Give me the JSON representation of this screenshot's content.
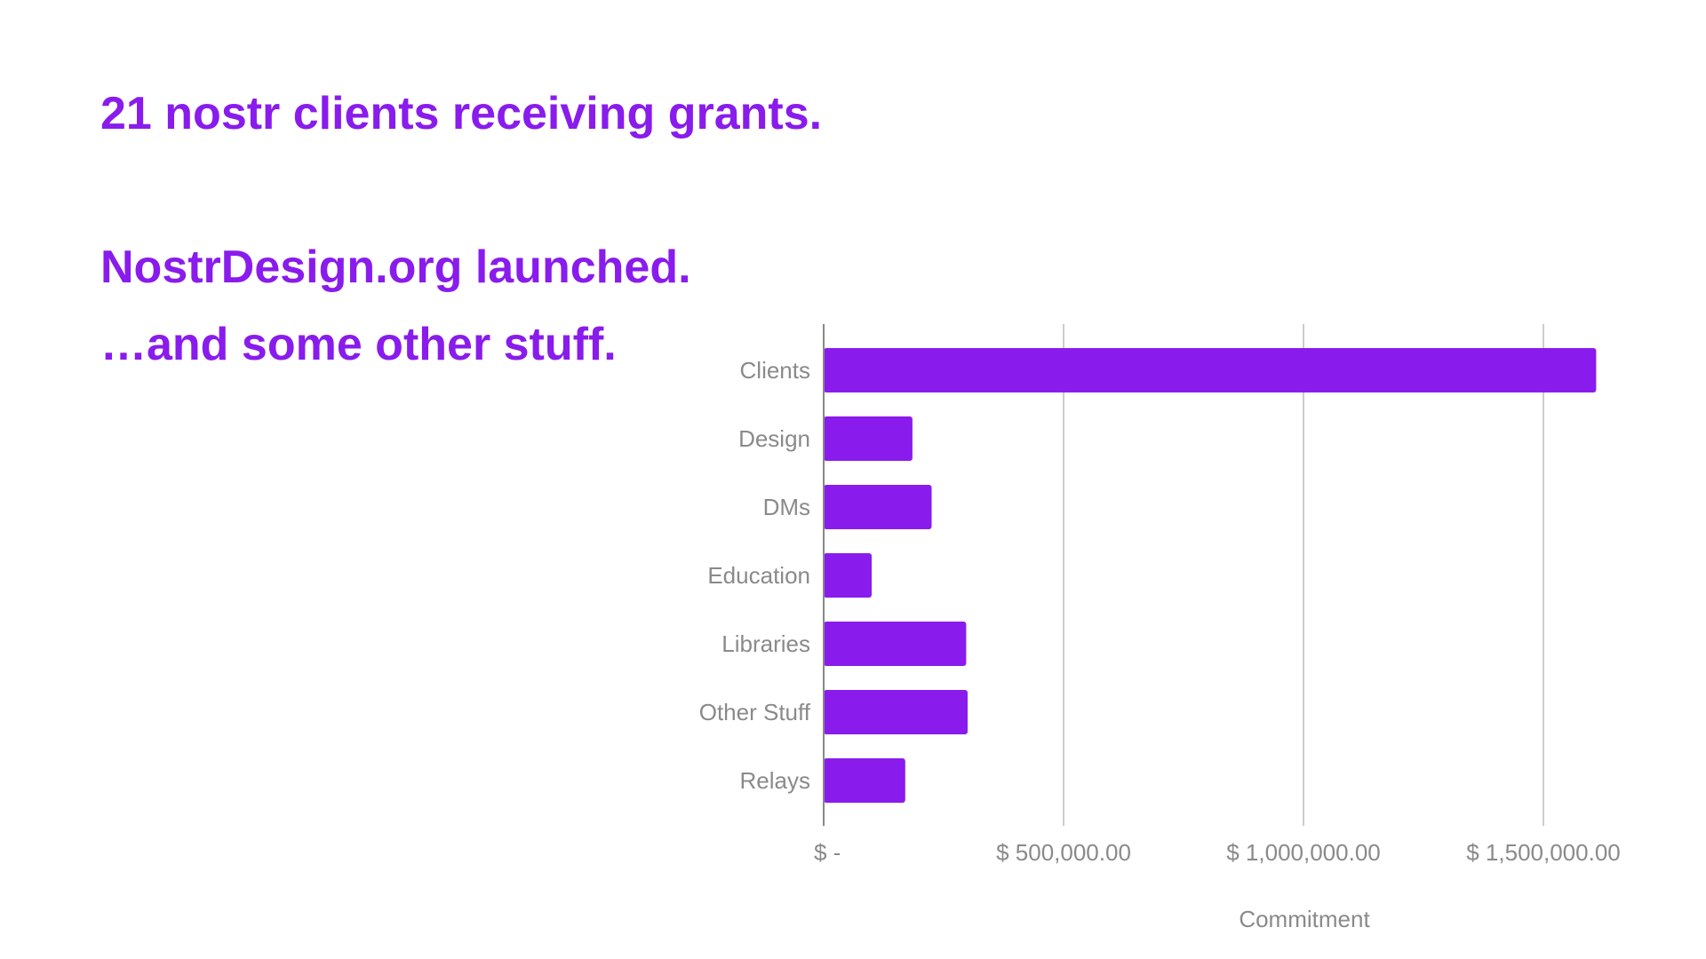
{
  "slide": {
    "lines": [
      "21 nostr clients receiving grants.",
      "NostrDesign.org launched.",
      "…and some other stuff."
    ]
  },
  "colors": {
    "accent": "#891cec",
    "axis_text": "#8a8a8a",
    "gridline": "#cccccc",
    "axis_line": "#888888"
  },
  "chart_data": {
    "type": "bar",
    "orientation": "horizontal",
    "categories": [
      "Clients",
      "Design",
      "DMs",
      "Education",
      "Libraries",
      "Other Stuff",
      "Relays"
    ],
    "values": [
      1610000,
      185000,
      225000,
      100000,
      297000,
      300000,
      170000
    ],
    "xlabel": "Commitment",
    "ylabel": "",
    "xlim": [
      0,
      1700000
    ],
    "x_ticks": [
      0,
      500000,
      1000000,
      1500000
    ],
    "x_tick_labels": [
      "$ -",
      "$ 500,000.00",
      "$ 1,000,000.00",
      "$ 1,500,000.00"
    ],
    "grid": true,
    "legend": "none"
  }
}
